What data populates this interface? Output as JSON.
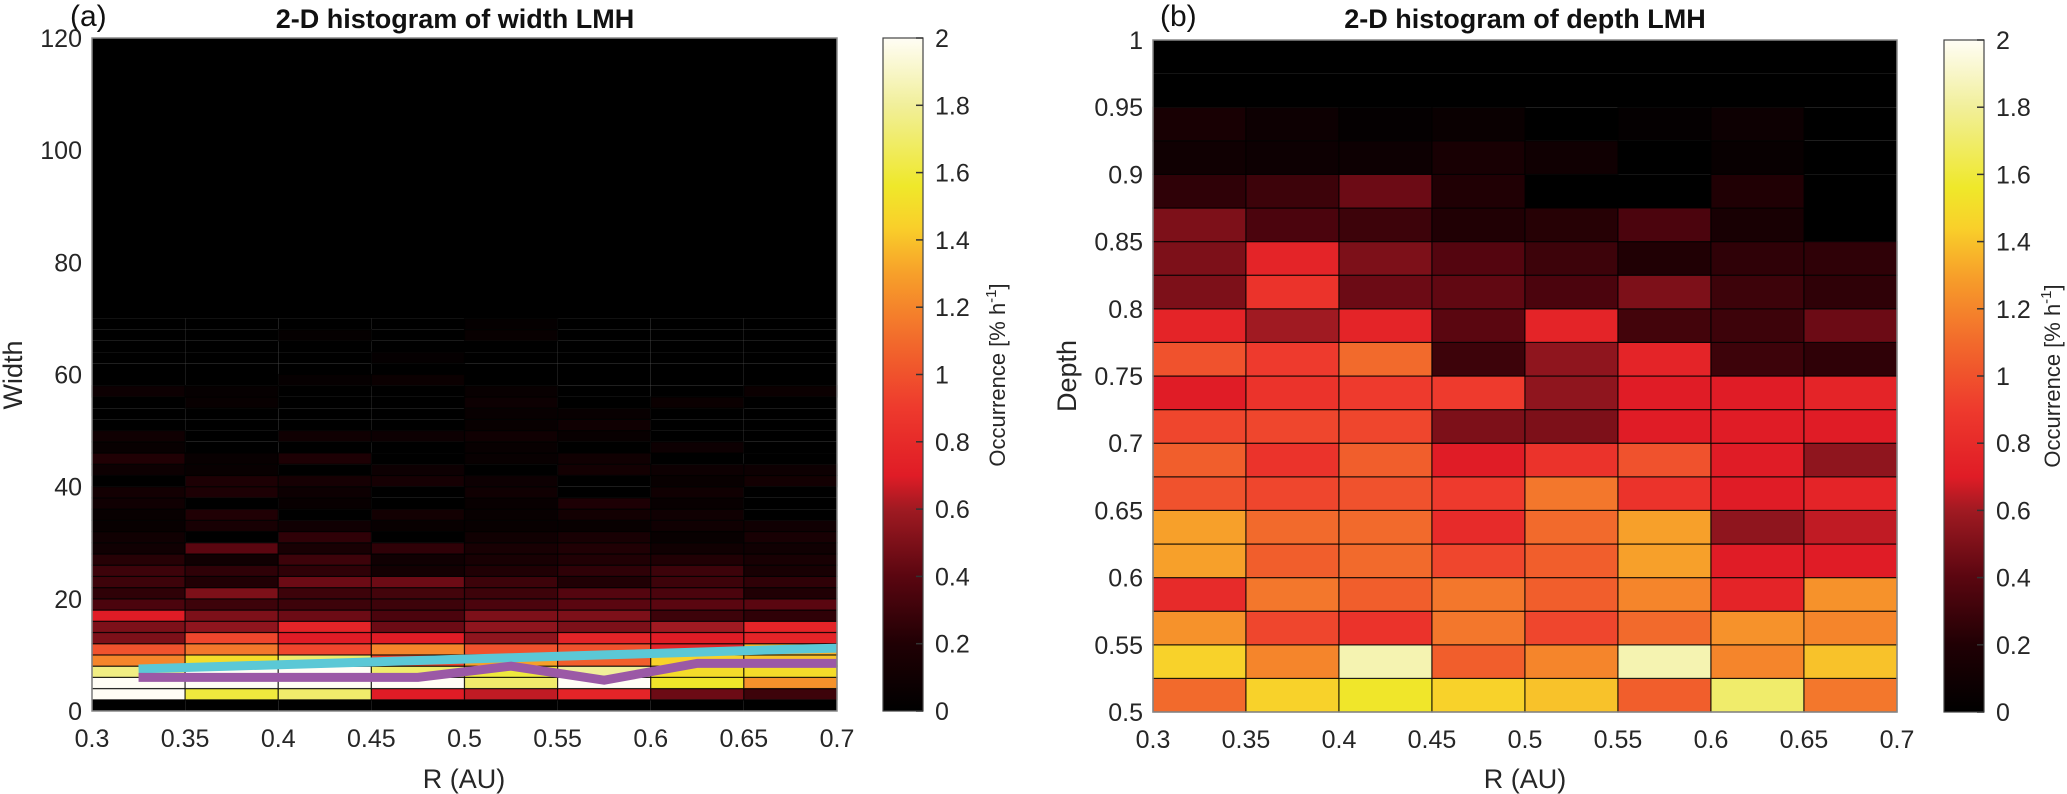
{
  "chart_data": [
    {
      "type": "heatmap",
      "panel_label": "(a)",
      "title": "2-D histogram of width LMH",
      "xlabel": "R (AU)",
      "ylabel": "Width",
      "xlim": [
        0.3,
        0.7
      ],
      "ylim": [
        0,
        120
      ],
      "x_ticks": [
        "0.3",
        "0.35",
        "0.4",
        "0.45",
        "0.5",
        "0.55",
        "0.6",
        "0.65",
        "0.7"
      ],
      "y_ticks": [
        "0",
        "20",
        "40",
        "60",
        "80",
        "100",
        "120"
      ],
      "x_bin_edges": [
        0.3,
        0.35,
        0.4,
        0.45,
        0.5,
        0.55,
        0.6,
        0.65,
        0.7
      ],
      "y_bin_size": 2,
      "colorbar": {
        "label": "Occurrence [% h",
        "label_sup": "-1",
        "label_end": "]",
        "range": [
          0,
          2
        ],
        "ticks": [
          "0",
          "0.2",
          "0.4",
          "0.6",
          "0.8",
          "1",
          "1.2",
          "1.4",
          "1.6",
          "1.8",
          "2"
        ],
        "colormap": "hot"
      },
      "rows_from_bottom": [
        [
          0.0,
          0.0,
          0.0,
          0.0,
          0.0,
          0.0,
          0.0,
          0.0
        ],
        [
          2.0,
          1.6,
          1.7,
          0.7,
          0.65,
          0.75,
          0.45,
          0.3
        ],
        [
          2.0,
          2.0,
          2.0,
          2.0,
          1.7,
          2.0,
          1.55,
          1.25
        ],
        [
          1.75,
          2.0,
          2.0,
          1.7,
          1.6,
          1.8,
          1.5,
          1.5
        ],
        [
          1.2,
          1.5,
          1.7,
          0.95,
          1.3,
          1.05,
          1.45,
          1.4
        ],
        [
          1.0,
          1.15,
          0.95,
          1.2,
          1.0,
          1.0,
          0.75,
          1.35
        ],
        [
          0.5,
          0.95,
          0.7,
          0.7,
          0.55,
          0.75,
          0.7,
          0.75
        ],
        [
          0.5,
          0.55,
          0.75,
          0.45,
          0.55,
          0.5,
          0.6,
          0.75
        ],
        [
          0.7,
          0.5,
          0.45,
          0.35,
          0.5,
          0.5,
          0.3,
          0.25
        ],
        [
          0.35,
          0.3,
          0.3,
          0.3,
          0.35,
          0.4,
          0.4,
          0.4
        ],
        [
          0.25,
          0.5,
          0.3,
          0.32,
          0.3,
          0.38,
          0.35,
          0.2
        ],
        [
          0.3,
          0.2,
          0.45,
          0.45,
          0.3,
          0.2,
          0.3,
          0.25
        ],
        [
          0.3,
          0.25,
          0.25,
          0.12,
          0.2,
          0.25,
          0.3,
          0.15
        ],
        [
          0.22,
          0.1,
          0.3,
          0.1,
          0.15,
          0.2,
          0.2,
          0.15
        ],
        [
          0.1,
          0.4,
          0.15,
          0.25,
          0.15,
          0.2,
          0.1,
          0.1
        ],
        [
          0.1,
          0.0,
          0.25,
          0.0,
          0.1,
          0.15,
          0.05,
          0.15
        ],
        [
          0.05,
          0.15,
          0.1,
          0.05,
          0.05,
          0.05,
          0.1,
          0.1
        ],
        [
          0.05,
          0.2,
          0.0,
          0.12,
          0.05,
          0.12,
          0.1,
          0.0
        ],
        [
          0.1,
          0.0,
          0.05,
          0.0,
          0.05,
          0.18,
          0.05,
          0.0
        ],
        [
          0.12,
          0.18,
          0.08,
          0.0,
          0.1,
          0.0,
          0.1,
          0.0
        ],
        [
          0.0,
          0.18,
          0.14,
          0.14,
          0.08,
          0.0,
          0.05,
          0.12
        ],
        [
          0.08,
          0.05,
          0.0,
          0.08,
          0.0,
          0.12,
          0.08,
          0.08
        ],
        [
          0.2,
          0.05,
          0.18,
          0.0,
          0.05,
          0.1,
          0.0,
          0.0
        ],
        [
          0.05,
          0.0,
          0.0,
          0.0,
          0.05,
          0.0,
          0.08,
          0.0
        ],
        [
          0.1,
          0.0,
          0.1,
          0.08,
          0.1,
          0.05,
          0.0,
          0.0
        ],
        [
          0.0,
          0.0,
          0.0,
          0.0,
          0.05,
          0.1,
          0.0,
          0.0
        ],
        [
          0.0,
          0.0,
          0.0,
          0.0,
          0.05,
          0.05,
          0.0,
          0.0
        ],
        [
          0.0,
          0.05,
          0.0,
          0.0,
          0.08,
          0.0,
          0.07,
          0.0
        ],
        [
          0.08,
          0.04,
          0.0,
          0.0,
          0.05,
          0.0,
          0.0,
          0.07
        ],
        [
          0.0,
          0.0,
          0.04,
          0.07,
          0.0,
          0.0,
          0.0,
          0.0
        ],
        [
          0.0,
          0.0,
          0.0,
          0.0,
          0.0,
          0.0,
          0.0,
          0.0
        ],
        [
          0.0,
          0.0,
          0.0,
          0.03,
          0.0,
          0.0,
          0.0,
          0.0
        ],
        [
          0.0,
          0.0,
          0.0,
          0.0,
          0.0,
          0.0,
          0.0,
          0.0
        ],
        [
          0.0,
          0.0,
          0.03,
          0.0,
          0.05,
          0.0,
          0.0,
          0.0
        ],
        [
          0.0,
          0.0,
          0.0,
          0.0,
          0.03,
          0.0,
          0.0,
          0.0
        ]
      ],
      "overlay_lines": [
        {
          "name": "cyan line",
          "color": "#5bc8d6",
          "x": [
            0.325,
            0.375,
            0.425,
            0.475,
            0.525,
            0.575,
            0.625,
            0.675,
            0.7
          ],
          "y": [
            7.5,
            8.0,
            8.5,
            9.0,
            9.5,
            10.0,
            10.5,
            11.0,
            11.2
          ]
        },
        {
          "name": "purple line",
          "color": "#9b59a6",
          "x": [
            0.325,
            0.375,
            0.425,
            0.475,
            0.525,
            0.575,
            0.625,
            0.675,
            0.7
          ],
          "y": [
            6.0,
            6.0,
            6.0,
            6.0,
            8.0,
            5.5,
            8.5,
            8.5,
            8.5
          ]
        }
      ]
    },
    {
      "type": "heatmap",
      "panel_label": "(b)",
      "title": "2-D histogram of depth LMH",
      "xlabel": "R (AU)",
      "ylabel": "Depth",
      "xlim": [
        0.3,
        0.7
      ],
      "ylim": [
        0.5,
        1
      ],
      "x_ticks": [
        "0.3",
        "0.35",
        "0.4",
        "0.45",
        "0.5",
        "0.55",
        "0.6",
        "0.65",
        "0.7"
      ],
      "y_ticks": [
        "0.5",
        "0.55",
        "0.6",
        "0.65",
        "0.7",
        "0.75",
        "0.8",
        "0.85",
        "0.9",
        "0.95",
        "1"
      ],
      "x_bin_edges": [
        0.3,
        0.35,
        0.4,
        0.45,
        0.5,
        0.55,
        0.6,
        0.65,
        0.7
      ],
      "y_bin_size": 0.025,
      "colorbar": {
        "label": "Occurrence [% h",
        "label_sup": "-1",
        "label_end": "]",
        "range": [
          0,
          2
        ],
        "ticks": [
          "0",
          "0.2",
          "0.4",
          "0.6",
          "0.8",
          "1",
          "1.2",
          "1.4",
          "1.6",
          "1.8",
          "2"
        ],
        "colormap": "hot"
      },
      "rows_from_bottom": [
        [
          1.1,
          1.45,
          1.55,
          1.45,
          1.4,
          1.05,
          1.7,
          1.15
        ],
        [
          1.45,
          1.2,
          1.85,
          1.05,
          1.2,
          1.85,
          1.2,
          1.4
        ],
        [
          1.25,
          0.95,
          0.85,
          1.15,
          0.95,
          1.1,
          1.25,
          1.2
        ],
        [
          0.8,
          1.15,
          1.05,
          1.15,
          1.05,
          1.2,
          0.75,
          1.25
        ],
        [
          1.3,
          1.05,
          1.1,
          0.95,
          1.05,
          1.3,
          0.7,
          0.7
        ],
        [
          1.3,
          1.1,
          1.1,
          0.8,
          1.1,
          1.3,
          0.55,
          0.65
        ],
        [
          1.0,
          0.95,
          1.0,
          0.9,
          1.15,
          0.85,
          0.7,
          0.75
        ],
        [
          1.05,
          0.85,
          1.05,
          0.7,
          0.85,
          1.0,
          0.7,
          0.55
        ],
        [
          0.95,
          0.95,
          0.95,
          0.5,
          0.5,
          0.7,
          0.7,
          0.7
        ],
        [
          0.7,
          0.85,
          0.9,
          0.9,
          0.55,
          0.7,
          0.7,
          0.75
        ],
        [
          1.0,
          0.9,
          1.1,
          0.3,
          0.55,
          0.75,
          0.3,
          0.25
        ],
        [
          0.75,
          0.6,
          0.75,
          0.4,
          0.75,
          0.32,
          0.3,
          0.45
        ],
        [
          0.5,
          0.85,
          0.45,
          0.42,
          0.35,
          0.5,
          0.3,
          0.25
        ],
        [
          0.5,
          0.75,
          0.5,
          0.38,
          0.3,
          0.2,
          0.25,
          0.25
        ],
        [
          0.5,
          0.35,
          0.3,
          0.2,
          0.22,
          0.35,
          0.15,
          0.0
        ],
        [
          0.25,
          0.3,
          0.45,
          0.2,
          0.0,
          0.0,
          0.2,
          0.0
        ],
        [
          0.1,
          0.08,
          0.08,
          0.15,
          0.1,
          0.0,
          0.05,
          0.0
        ],
        [
          0.15,
          0.08,
          0.03,
          0.06,
          0.0,
          0.03,
          0.08,
          0.0
        ],
        [
          0.0,
          0.0,
          0.0,
          0.0,
          0.0,
          0.0,
          0.0,
          0.0
        ],
        [
          0.0,
          0.0,
          0.0,
          0.0,
          0.0,
          0.0,
          0.0,
          0.0
        ]
      ]
    }
  ]
}
